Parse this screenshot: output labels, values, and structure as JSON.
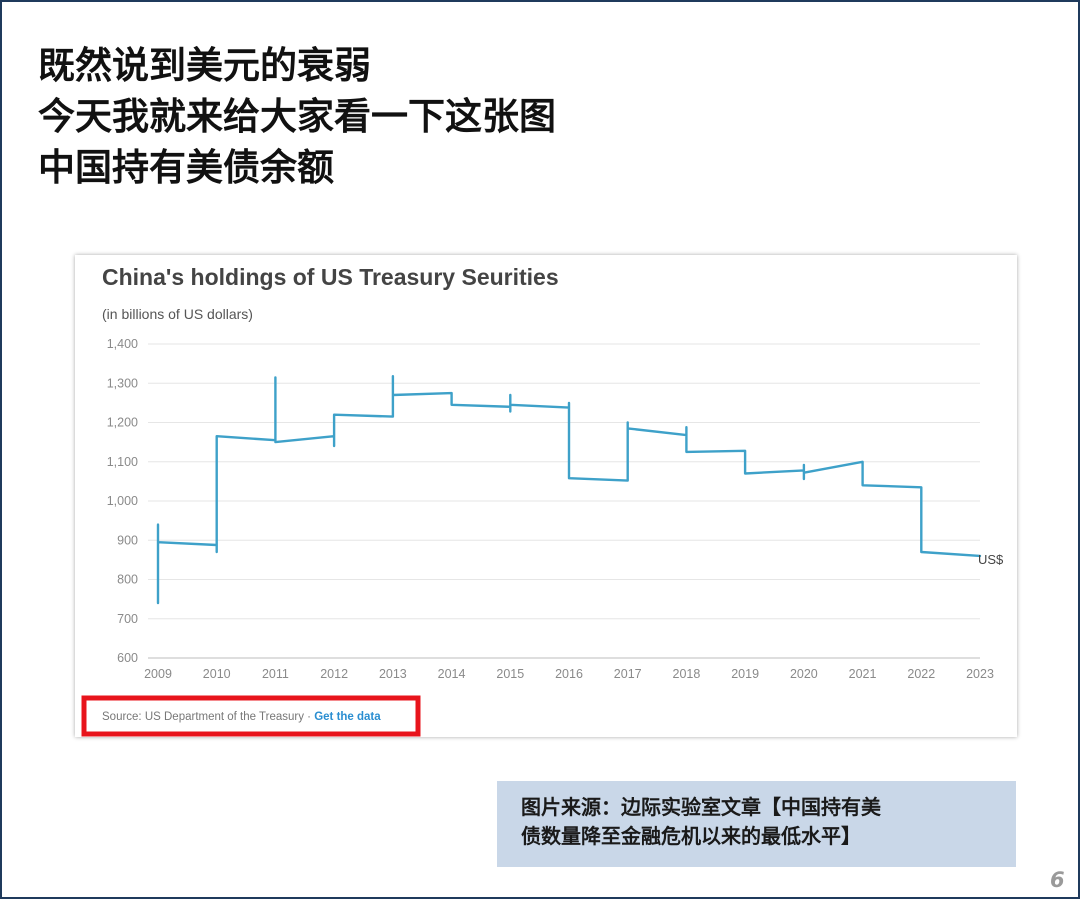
{
  "slide": {
    "headline_lines": [
      "既然说到美元的衰弱",
      "今天我就来给大家看一下这张图",
      "中国持有美债余额"
    ],
    "page_number": "6",
    "frame_color": "#1f3a5c"
  },
  "chart_data": {
    "type": "line",
    "title": "China's holdings of US Treasury Seurities",
    "subtitle": "(in billions of US dollars)",
    "xlabel": "",
    "ylabel": "",
    "ylim": [
      600,
      1400
    ],
    "xlim": [
      2009,
      2023
    ],
    "x_ticks": [
      "2009",
      "2010",
      "2011",
      "2012",
      "2013",
      "2014",
      "2015",
      "2016",
      "2017",
      "2018",
      "2019",
      "2020",
      "2021",
      "2022",
      "2023"
    ],
    "y_ticks": [
      "600",
      "700",
      "800",
      "900",
      "1,000",
      "1,100",
      "1,200",
      "1,300",
      "1,400"
    ],
    "grid": true,
    "series": [
      {
        "name": "US$",
        "color": "#3ea1c9",
        "points": [
          [
            2009.0,
            740
          ],
          [
            2009.0,
            940
          ],
          [
            2009.0,
            895
          ],
          [
            2010.0,
            888
          ],
          [
            2010.0,
            870
          ],
          [
            2010.0,
            1165
          ],
          [
            2011.0,
            1155
          ],
          [
            2011.0,
            1315
          ],
          [
            2011.0,
            1150
          ],
          [
            2012.0,
            1165
          ],
          [
            2012.0,
            1140
          ],
          [
            2012.0,
            1220
          ],
          [
            2013.0,
            1215
          ],
          [
            2013.0,
            1318
          ],
          [
            2013.0,
            1270
          ],
          [
            2014.0,
            1275
          ],
          [
            2014.0,
            1245
          ],
          [
            2015.0,
            1240
          ],
          [
            2015.0,
            1270
          ],
          [
            2015.0,
            1228
          ],
          [
            2015.0,
            1245
          ],
          [
            2016.0,
            1238
          ],
          [
            2016.0,
            1250
          ],
          [
            2016.0,
            1058
          ],
          [
            2017.0,
            1052
          ],
          [
            2017.0,
            1200
          ],
          [
            2017.0,
            1185
          ],
          [
            2018.0,
            1168
          ],
          [
            2018.0,
            1188
          ],
          [
            2018.0,
            1125
          ],
          [
            2019.0,
            1128
          ],
          [
            2019.0,
            1070
          ],
          [
            2020.0,
            1078
          ],
          [
            2020.0,
            1092
          ],
          [
            2020.0,
            1056
          ],
          [
            2020.0,
            1072
          ],
          [
            2021.0,
            1100
          ],
          [
            2021.0,
            1040
          ],
          [
            2022.0,
            1035
          ],
          [
            2022.0,
            870
          ],
          [
            2023.0,
            860
          ]
        ]
      }
    ],
    "series_end_label": "US$",
    "source_text": "Source: US Department of the Treasury · ",
    "source_link": "Get the data",
    "highlight_color": "#e8141c"
  },
  "note": {
    "lines": [
      "图片来源：边际实验室文章【中国持有美",
      "债数量降至金融危机以来的最低水平】"
    ],
    "background": "#c9d7e8"
  }
}
